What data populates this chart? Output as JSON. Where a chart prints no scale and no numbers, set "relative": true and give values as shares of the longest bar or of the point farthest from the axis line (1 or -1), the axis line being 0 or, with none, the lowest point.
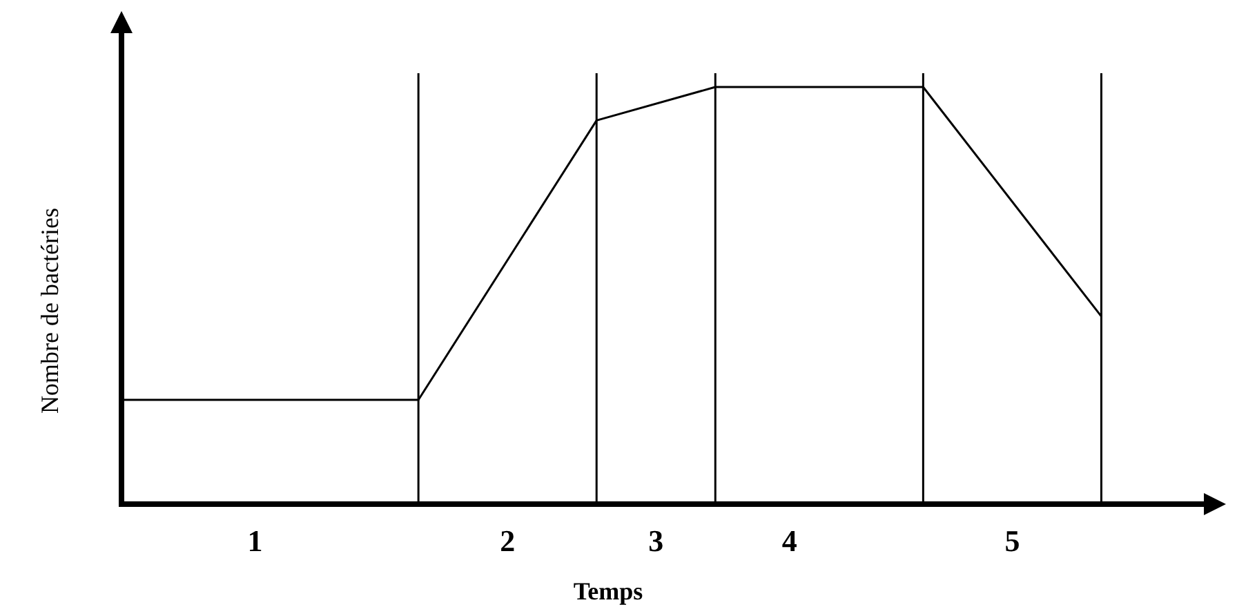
{
  "chart_data": {
    "type": "line",
    "relative": true,
    "xlabel": "Temps",
    "ylabel": "Nombre de bactéries",
    "marker": "none",
    "line_style": "solid",
    "categories": [
      null,
      null,
      null,
      null,
      null,
      null,
      null,
      null,
      null,
      "1",
      null,
      null,
      null,
      null,
      null,
      null,
      null,
      null,
      null,
      null,
      null,
      null,
      null,
      null,
      null,
      null,
      "2",
      null,
      null,
      null,
      null,
      null,
      null,
      null,
      null,
      null,
      "3",
      null,
      null,
      null,
      null,
      null,
      null,
      null,
      null,
      "4",
      null,
      null,
      null,
      null,
      null,
      null,
      null,
      null,
      null,
      null,
      null,
      null,
      null,
      null,
      "5",
      null,
      null,
      null,
      null,
      null,
      null,
      null,
      null,
      null,
      null,
      null,
      null,
      null
    ],
    "series": [
      {
        "color": "#000000",
        "values": [
          0.25,
          null,
          null,
          null,
          null,
          null,
          null,
          null,
          null,
          null,
          null,
          null,
          null,
          null,
          null,
          null,
          null,
          null,
          null,
          null,
          0.25,
          null,
          null,
          null,
          null,
          null,
          null,
          null,
          null,
          null,
          null,
          null,
          0.92,
          null,
          null,
          null,
          null,
          null,
          null,
          null,
          1,
          null,
          null,
          null,
          null,
          null,
          null,
          null,
          null,
          null,
          null,
          null,
          null,
          null,
          1,
          null,
          null,
          null,
          null,
          null,
          null,
          null,
          null,
          null,
          null,
          null,
          0.45,
          null,
          null,
          null,
          null,
          null,
          null,
          null
        ]
      }
    ]
  }
}
